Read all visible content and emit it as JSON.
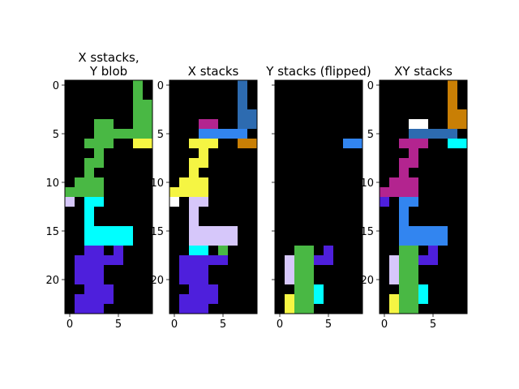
{
  "figure": {
    "background": "#ffffff"
  },
  "palette": {
    "black": "#000000",
    "white": "#ffffff",
    "green": "#49b844",
    "yellow": "#f5f543",
    "cyan": "#00ffff",
    "lavender": "#d6c7fa",
    "purple": "#4e1fdc",
    "magenta": "#b3248f",
    "blue": "#3285f0",
    "steel": "#2d6bb0",
    "orange": "#c97f05"
  },
  "chart_data": [
    {
      "type": "heatmap",
      "title": "X sstacks,\nY blob",
      "grid": false,
      "xlim": [
        -0.5,
        8.5
      ],
      "ylim": [
        23.5,
        -0.5
      ],
      "xticks": [
        0,
        5
      ],
      "yticks": [
        0,
        5,
        10,
        15,
        20
      ],
      "ytick_labels": [
        "0",
        "5",
        "10",
        "15",
        "20"
      ],
      "rows": 24,
      "cols": 9,
      "cells": [
        [
          7,
          0,
          1,
          "green"
        ],
        [
          7,
          1,
          1,
          "green"
        ],
        [
          7,
          2,
          2,
          "green"
        ],
        [
          7,
          3,
          2,
          "green"
        ],
        [
          3,
          4,
          2,
          "green"
        ],
        [
          7,
          4,
          2,
          "green"
        ],
        [
          3,
          5,
          6,
          "green"
        ],
        [
          2,
          6,
          3,
          "green"
        ],
        [
          7,
          6,
          2,
          "yellow"
        ],
        [
          3,
          7,
          1,
          "green"
        ],
        [
          2,
          8,
          2,
          "green"
        ],
        [
          2,
          9,
          1,
          "green"
        ],
        [
          1,
          10,
          3,
          "green"
        ],
        [
          0,
          11,
          4,
          "green"
        ],
        [
          0,
          12,
          1,
          "lavender"
        ],
        [
          2,
          12,
          2,
          "cyan"
        ],
        [
          2,
          13,
          1,
          "cyan"
        ],
        [
          2,
          14,
          1,
          "cyan"
        ],
        [
          2,
          15,
          5,
          "cyan"
        ],
        [
          2,
          16,
          5,
          "cyan"
        ],
        [
          2,
          17,
          2,
          "purple"
        ],
        [
          5,
          17,
          1,
          "purple"
        ],
        [
          1,
          18,
          5,
          "purple"
        ],
        [
          1,
          19,
          3,
          "purple"
        ],
        [
          1,
          20,
          3,
          "purple"
        ],
        [
          2,
          21,
          3,
          "purple"
        ],
        [
          1,
          22,
          4,
          "purple"
        ],
        [
          1,
          23,
          3,
          "purple"
        ]
      ]
    },
    {
      "type": "heatmap",
      "title": "X stacks",
      "grid": false,
      "xlim": [
        -0.5,
        8.5
      ],
      "ylim": [
        23.5,
        -0.5
      ],
      "xticks": [
        0,
        5
      ],
      "yticks": [
        0,
        5,
        10,
        15,
        20
      ],
      "ytick_labels": [
        "0",
        "5",
        "10",
        "15",
        "20"
      ],
      "rows": 24,
      "cols": 9,
      "cells": [
        [
          7,
          0,
          1,
          "steel"
        ],
        [
          7,
          1,
          1,
          "steel"
        ],
        [
          7,
          2,
          1,
          "steel"
        ],
        [
          7,
          3,
          2,
          "steel"
        ],
        [
          3,
          4,
          2,
          "magenta"
        ],
        [
          7,
          4,
          2,
          "steel"
        ],
        [
          3,
          5,
          5,
          "blue"
        ],
        [
          2,
          6,
          3,
          "yellow"
        ],
        [
          7,
          6,
          2,
          "orange"
        ],
        [
          3,
          7,
          1,
          "yellow"
        ],
        [
          2,
          8,
          2,
          "yellow"
        ],
        [
          2,
          9,
          1,
          "yellow"
        ],
        [
          1,
          10,
          3,
          "yellow"
        ],
        [
          0,
          11,
          4,
          "yellow"
        ],
        [
          0,
          12,
          1,
          "white"
        ],
        [
          2,
          12,
          2,
          "lavender"
        ],
        [
          2,
          13,
          1,
          "lavender"
        ],
        [
          2,
          14,
          1,
          "lavender"
        ],
        [
          2,
          15,
          5,
          "lavender"
        ],
        [
          2,
          16,
          5,
          "lavender"
        ],
        [
          2,
          17,
          2,
          "cyan"
        ],
        [
          5,
          17,
          1,
          "green"
        ],
        [
          1,
          18,
          5,
          "purple"
        ],
        [
          1,
          19,
          3,
          "purple"
        ],
        [
          1,
          20,
          3,
          "purple"
        ],
        [
          2,
          21,
          3,
          "purple"
        ],
        [
          1,
          22,
          4,
          "purple"
        ],
        [
          1,
          23,
          3,
          "purple"
        ]
      ]
    },
    {
      "type": "heatmap",
      "title": "Y stacks (flipped)",
      "grid": false,
      "xlim": [
        -0.5,
        8.5
      ],
      "ylim": [
        23.5,
        -0.5
      ],
      "xticks": [
        0,
        5
      ],
      "yticks": [
        0,
        5,
        10,
        15,
        20
      ],
      "ytick_labels": [
        "",
        "",
        "",
        "",
        ""
      ],
      "rows": 24,
      "cols": 9,
      "cells": [
        [
          7,
          6,
          2,
          "blue"
        ],
        [
          2,
          17,
          2,
          "green"
        ],
        [
          5,
          17,
          1,
          "purple"
        ],
        [
          1,
          18,
          1,
          "lavender"
        ],
        [
          2,
          18,
          2,
          "green"
        ],
        [
          4,
          18,
          2,
          "purple"
        ],
        [
          1,
          19,
          1,
          "lavender"
        ],
        [
          2,
          19,
          2,
          "green"
        ],
        [
          1,
          20,
          1,
          "lavender"
        ],
        [
          2,
          20,
          2,
          "green"
        ],
        [
          2,
          21,
          2,
          "green"
        ],
        [
          4,
          21,
          1,
          "cyan"
        ],
        [
          1,
          22,
          1,
          "yellow"
        ],
        [
          2,
          22,
          2,
          "green"
        ],
        [
          4,
          22,
          1,
          "cyan"
        ],
        [
          1,
          23,
          1,
          "yellow"
        ],
        [
          2,
          23,
          2,
          "green"
        ]
      ]
    },
    {
      "type": "heatmap",
      "title": "XY stacks",
      "grid": false,
      "xlim": [
        -0.5,
        8.5
      ],
      "ylim": [
        23.5,
        -0.5
      ],
      "xticks": [
        0,
        5
      ],
      "yticks": [
        0,
        5,
        10,
        15,
        20
      ],
      "ytick_labels": [
        "0",
        "5",
        "10",
        "15",
        "20"
      ],
      "rows": 24,
      "cols": 9,
      "cells": [
        [
          7,
          0,
          1,
          "orange"
        ],
        [
          7,
          1,
          1,
          "orange"
        ],
        [
          7,
          2,
          1,
          "orange"
        ],
        [
          7,
          3,
          2,
          "orange"
        ],
        [
          3,
          4,
          2,
          "white"
        ],
        [
          7,
          4,
          2,
          "orange"
        ],
        [
          3,
          5,
          5,
          "steel"
        ],
        [
          2,
          6,
          3,
          "magenta"
        ],
        [
          7,
          6,
          2,
          "cyan"
        ],
        [
          3,
          7,
          1,
          "magenta"
        ],
        [
          2,
          8,
          2,
          "magenta"
        ],
        [
          2,
          9,
          1,
          "magenta"
        ],
        [
          1,
          10,
          3,
          "magenta"
        ],
        [
          0,
          11,
          4,
          "magenta"
        ],
        [
          0,
          12,
          1,
          "purple"
        ],
        [
          2,
          12,
          2,
          "blue"
        ],
        [
          2,
          13,
          1,
          "blue"
        ],
        [
          2,
          14,
          1,
          "blue"
        ],
        [
          2,
          15,
          5,
          "blue"
        ],
        [
          2,
          16,
          5,
          "blue"
        ],
        [
          2,
          17,
          2,
          "green"
        ],
        [
          5,
          17,
          1,
          "purple"
        ],
        [
          1,
          18,
          1,
          "lavender"
        ],
        [
          2,
          18,
          2,
          "green"
        ],
        [
          4,
          18,
          2,
          "purple"
        ],
        [
          1,
          19,
          1,
          "lavender"
        ],
        [
          2,
          19,
          2,
          "green"
        ],
        [
          1,
          20,
          1,
          "lavender"
        ],
        [
          2,
          20,
          2,
          "green"
        ],
        [
          2,
          21,
          2,
          "green"
        ],
        [
          4,
          21,
          1,
          "cyan"
        ],
        [
          1,
          22,
          1,
          "yellow"
        ],
        [
          2,
          22,
          2,
          "green"
        ],
        [
          4,
          22,
          1,
          "cyan"
        ],
        [
          1,
          23,
          1,
          "yellow"
        ],
        [
          2,
          23,
          2,
          "green"
        ]
      ]
    }
  ]
}
